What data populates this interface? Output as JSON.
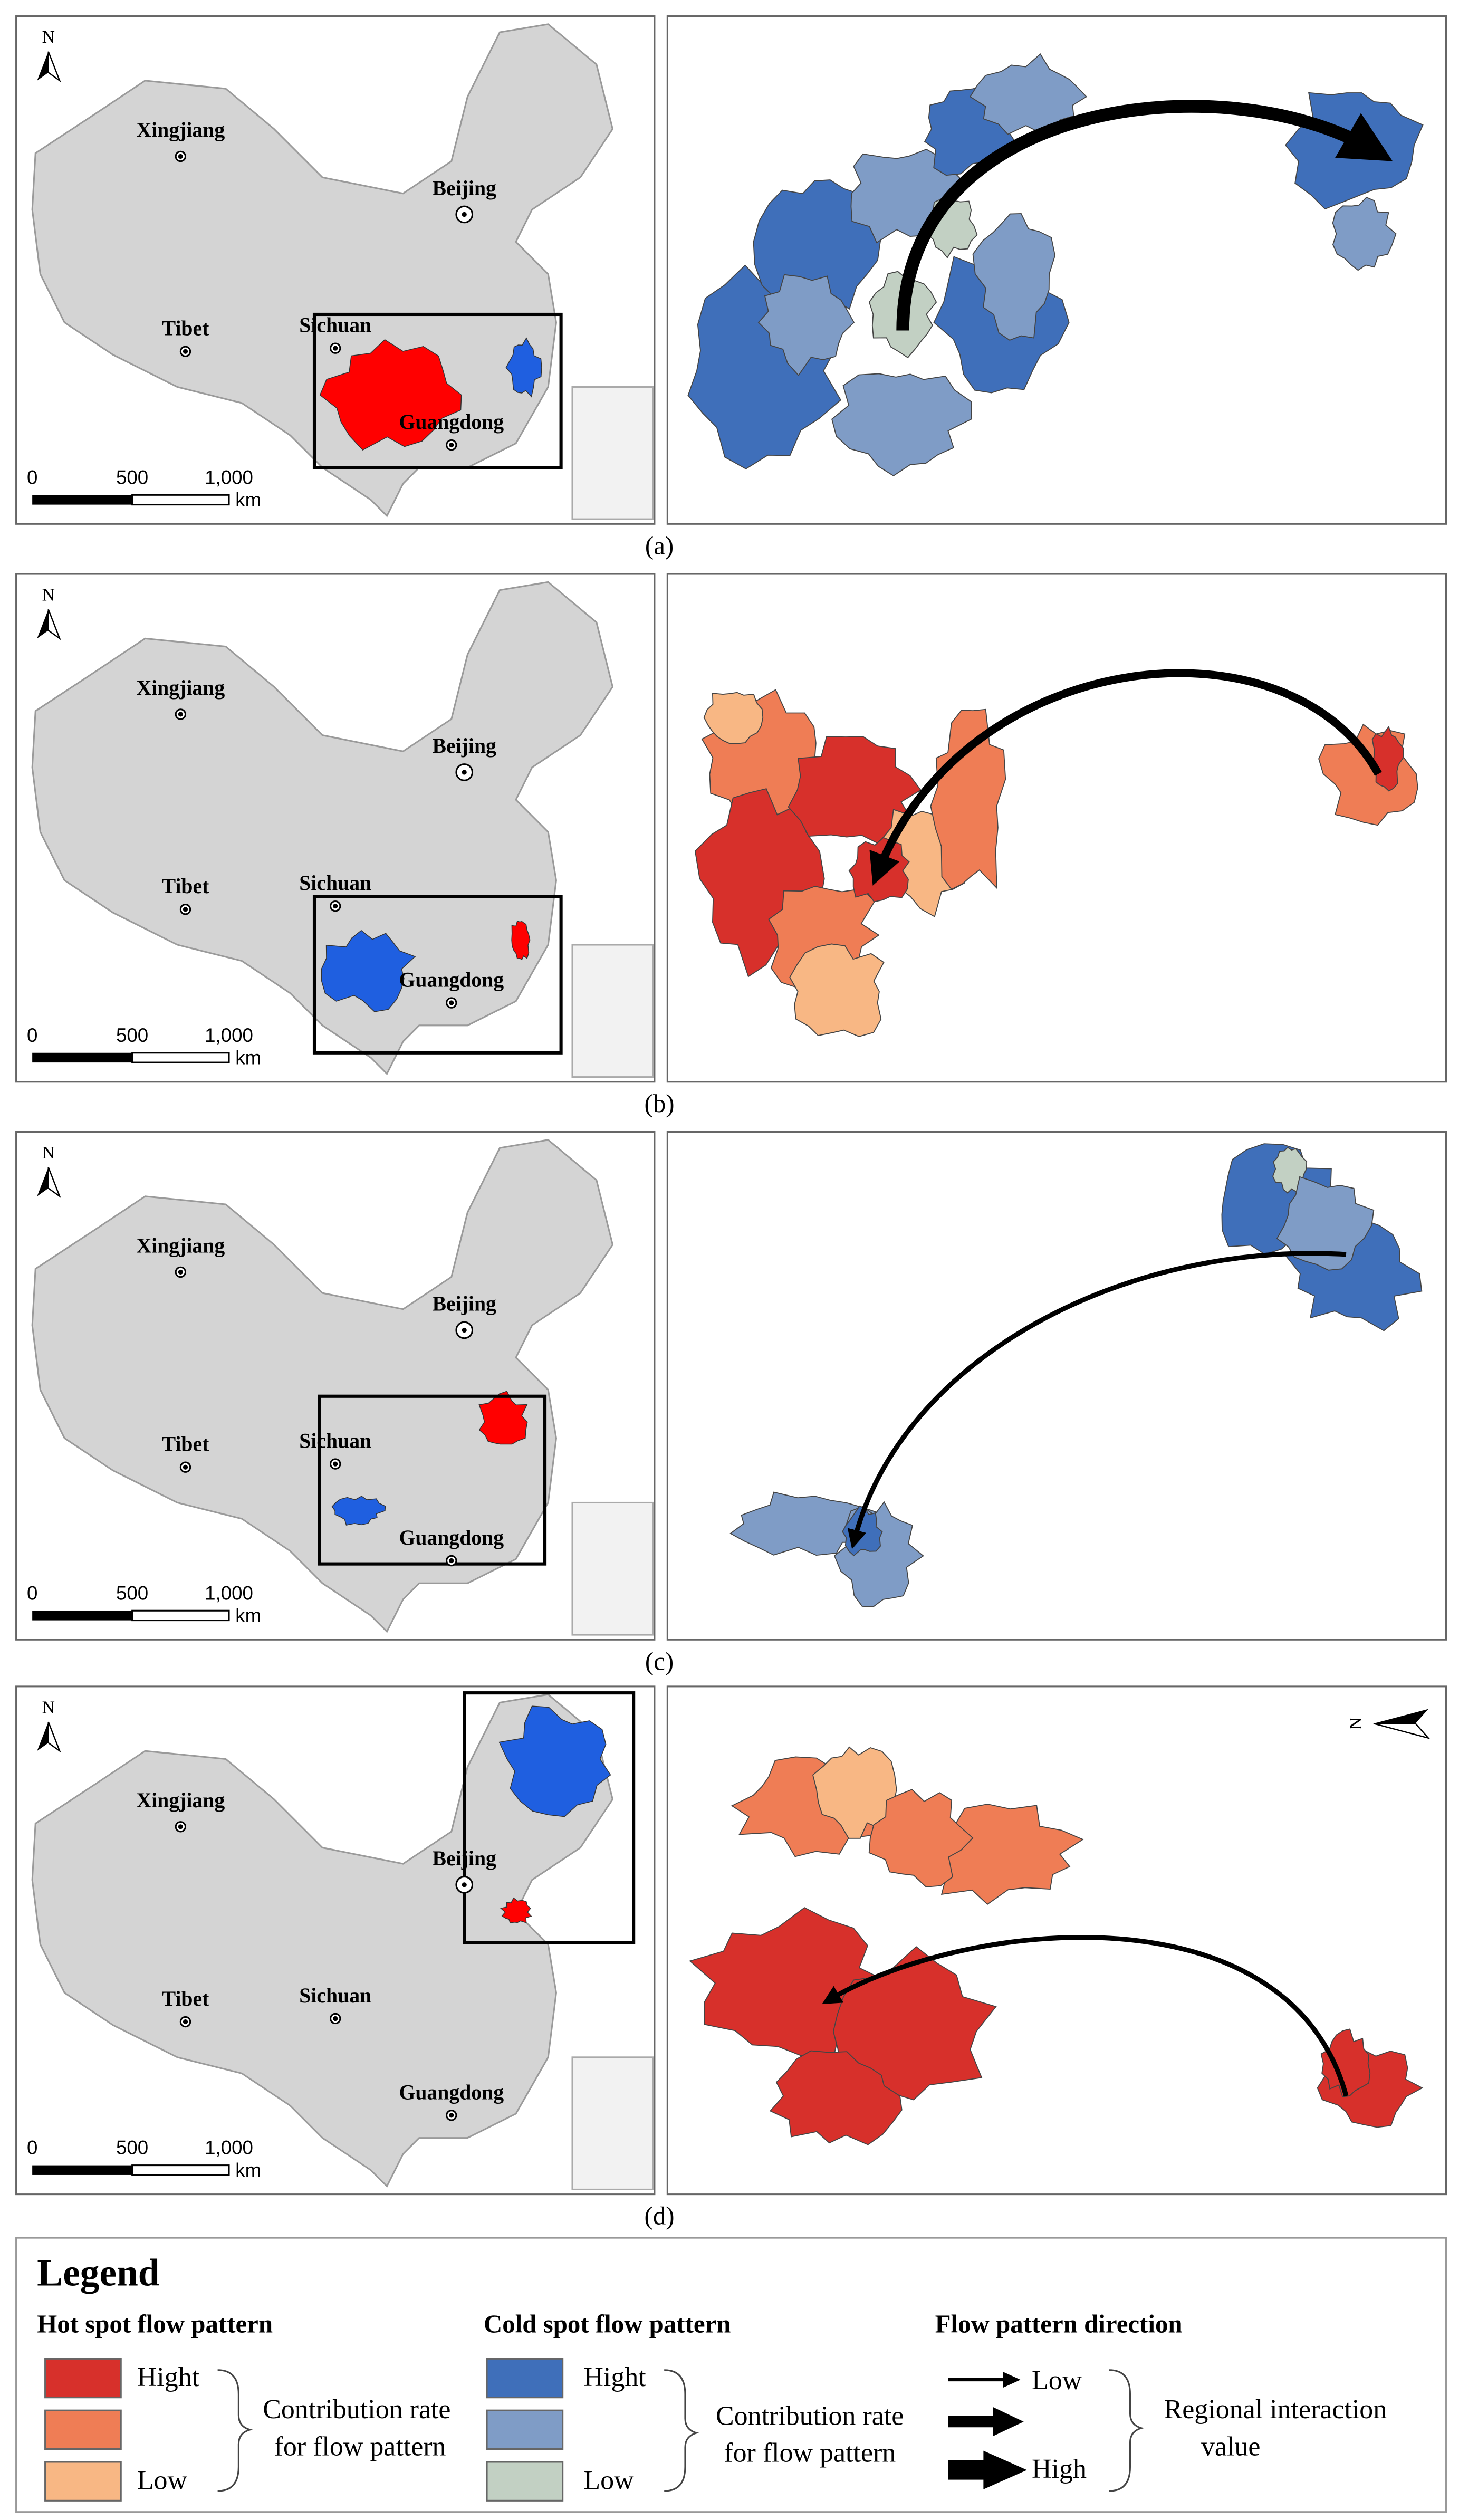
{
  "panels": [
    {
      "label": "(a)"
    },
    {
      "label": "(b)"
    },
    {
      "label": "(c)"
    },
    {
      "label": "(d)"
    }
  ],
  "map_labels": {
    "north": "N",
    "xingjiang": "Xingjiang",
    "beijing": "Beijing",
    "tibet": "Tibet",
    "sichuan": "Sichuan",
    "guangdong": "Guangdong"
  },
  "scale_bar": {
    "ticks": [
      "0",
      "500",
      "1,000"
    ],
    "unit": "km"
  },
  "legend": {
    "title": "Legend",
    "hot": {
      "heading": "Hot spot flow pattern",
      "high": "Hight",
      "low": "Low",
      "description": [
        "Contribution rate",
        "for flow pattern"
      ]
    },
    "cold": {
      "heading": "Cold spot flow pattern",
      "high": "Hight",
      "low": "Low",
      "description": [
        "Contribution rate",
        "for flow pattern"
      ]
    },
    "direction": {
      "heading": "Flow pattern direction",
      "low": "Low",
      "high": "High",
      "description": [
        "Regional interaction",
        "value"
      ]
    }
  }
}
